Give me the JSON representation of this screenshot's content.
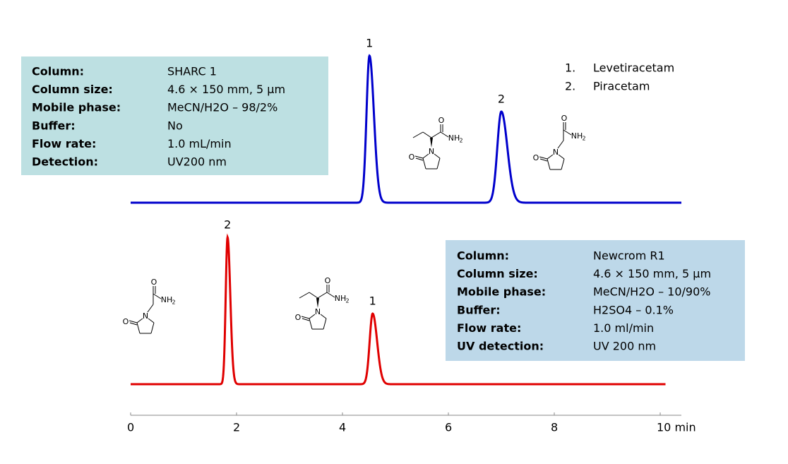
{
  "chart_data": {
    "type": "chromatogram",
    "xlim": [
      0,
      10.4
    ],
    "xticks": [
      0,
      2,
      4,
      6,
      8,
      {
        "value": 10,
        "label": "10 min"
      }
    ],
    "legend": [
      {
        "number": "1.",
        "name": "Levetiracetam"
      },
      {
        "number": "2.",
        "name": "Piracetam"
      }
    ],
    "atoms": [
      "O",
      "N",
      "NH",
      "2"
    ],
    "series": [
      {
        "color": "#0000cc",
        "xlim": [
          0,
          10.4
        ],
        "peaks": {
          "labels": [
            "1",
            "2"
          ],
          "x": [
            4.51,
            7.0
          ],
          "heights": [
            208,
            129
          ]
        },
        "conditions": [
          [
            "Column:",
            "SHARC  1"
          ],
          [
            "Column size:",
            "4.6 × 150 mm, 5 µm"
          ],
          [
            "Mobile phase:",
            "MeCN/H2O – 98/2%"
          ],
          [
            "Buffer:",
            "No"
          ],
          [
            "Flow rate:",
            "1.0 mL/min"
          ],
          [
            "Detection:",
            "UV200 nm"
          ]
        ]
      },
      {
        "color": "#e00000",
        "xlim": [
          0,
          10.1
        ],
        "peaks": {
          "labels": [
            "2",
            "1"
          ],
          "x": [
            1.83,
            4.57
          ],
          "heights": [
            208,
            100
          ]
        },
        "conditions": [
          [
            "Column:",
            "Newcrom R1"
          ],
          [
            "Column size:",
            "4.6 × 150 mm, 5 µm"
          ],
          [
            "Mobile phase:",
            "MeCN/H2O – 10/90%"
          ],
          [
            "Buffer:",
            "H2SO4 – 0.1%"
          ],
          [
            "Flow rate:",
            "1.0 ml/min"
          ],
          [
            "UV detection:",
            "UV 200 nm"
          ]
        ]
      }
    ]
  }
}
